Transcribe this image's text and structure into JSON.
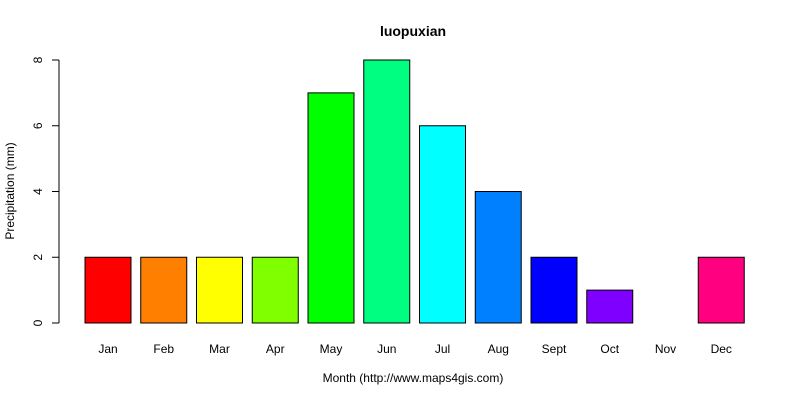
{
  "chart_data": {
    "type": "bar",
    "title": "luopuxian",
    "xlabel": "Month (http://www.maps4gis.com)",
    "ylabel": "Precipitation (mm)",
    "categories": [
      "Jan",
      "Feb",
      "Mar",
      "Apr",
      "May",
      "Jun",
      "Jul",
      "Aug",
      "Sept",
      "Oct",
      "Nov",
      "Dec"
    ],
    "values": [
      2,
      2,
      2,
      2,
      7,
      8,
      6,
      4,
      2,
      1,
      0,
      2
    ],
    "colors": [
      "#FF0000",
      "#FF8000",
      "#FFFF00",
      "#80FF00",
      "#00FF00",
      "#00FF80",
      "#00FFFF",
      "#0080FF",
      "#0000FF",
      "#8000FF",
      "#FF00FF",
      "#FF0080"
    ],
    "yticks": [
      0,
      2,
      4,
      6,
      8
    ],
    "ylim": [
      0,
      8
    ],
    "grid": false,
    "legend": "none"
  }
}
